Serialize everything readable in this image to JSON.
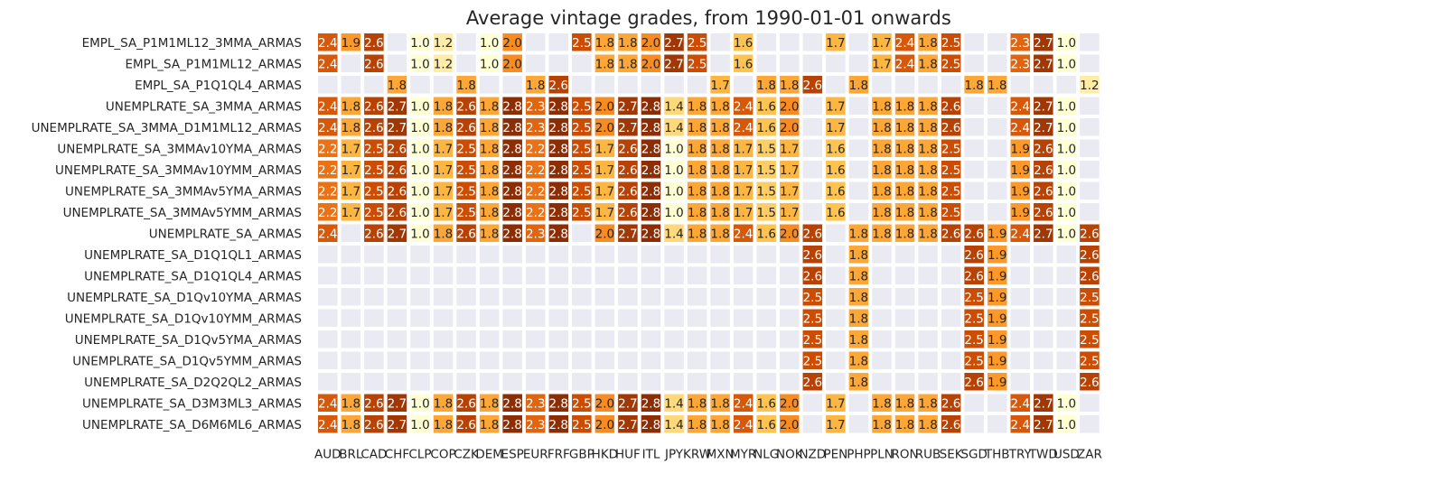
{
  "chart_data": {
    "type": "heatmap",
    "title": "Average vintage grades, from 1990-01-01 onwards",
    "xlabel": "",
    "ylabel": "",
    "x_categories": [
      "AUD",
      "BRL",
      "CAD",
      "CHF",
      "CLP",
      "COP",
      "CZK",
      "DEM",
      "ESP",
      "EUR",
      "FRF",
      "GBP",
      "HKD",
      "HUF",
      "ITL",
      "JPY",
      "KRW",
      "MXN",
      "MYR",
      "NLG",
      "NOK",
      "NZD",
      "PEN",
      "PHP",
      "PLN",
      "RON",
      "RUB",
      "SEK",
      "SGD",
      "THB",
      "TRY",
      "TWD",
      "USD",
      "ZAR"
    ],
    "y_categories": [
      "EMPL_SA_P1M1ML12_3MMA_ARMAS",
      "EMPL_SA_P1M1ML12_ARMAS",
      "EMPL_SA_P1Q1QL4_ARMAS",
      "UNEMPLRATE_SA_3MMA_ARMAS",
      "UNEMPLRATE_SA_3MMA_D1M1ML12_ARMAS",
      "UNEMPLRATE_SA_3MMAv10YMA_ARMAS",
      "UNEMPLRATE_SA_3MMAv10YMM_ARMAS",
      "UNEMPLRATE_SA_3MMAv5YMA_ARMAS",
      "UNEMPLRATE_SA_3MMAv5YMM_ARMAS",
      "UNEMPLRATE_SA_ARMAS",
      "UNEMPLRATE_SA_D1Q1QL1_ARMAS",
      "UNEMPLRATE_SA_D1Q1QL4_ARMAS",
      "UNEMPLRATE_SA_D1Qv10YMA_ARMAS",
      "UNEMPLRATE_SA_D1Qv10YMM_ARMAS",
      "UNEMPLRATE_SA_D1Qv5YMA_ARMAS",
      "UNEMPLRATE_SA_D1Qv5YMM_ARMAS",
      "UNEMPLRATE_SA_D2Q2QL2_ARMAS",
      "UNEMPLRATE_SA_D3M3ML3_ARMAS",
      "UNEMPLRATE_SA_D6M6ML6_ARMAS"
    ],
    "values": [
      [
        2.4,
        1.9,
        2.6,
        null,
        1.0,
        1.2,
        null,
        1.0,
        2.0,
        null,
        null,
        2.5,
        1.8,
        1.8,
        2.0,
        2.7,
        2.5,
        null,
        1.6,
        null,
        null,
        null,
        1.7,
        null,
        1.7,
        2.4,
        1.8,
        2.5,
        null,
        null,
        2.3,
        2.7,
        1.0,
        null
      ],
      [
        2.4,
        null,
        2.6,
        null,
        1.0,
        1.2,
        null,
        1.0,
        2.0,
        null,
        null,
        null,
        1.8,
        1.8,
        2.0,
        2.7,
        2.5,
        null,
        1.6,
        null,
        null,
        null,
        null,
        null,
        1.7,
        2.4,
        1.8,
        2.5,
        null,
        null,
        2.3,
        2.7,
        1.0,
        null
      ],
      [
        null,
        null,
        null,
        1.8,
        null,
        null,
        1.8,
        null,
        null,
        1.8,
        2.6,
        null,
        null,
        null,
        null,
        null,
        null,
        1.7,
        null,
        1.8,
        1.8,
        2.6,
        null,
        1.8,
        null,
        null,
        null,
        null,
        1.8,
        1.8,
        null,
        null,
        null,
        1.2
      ],
      [
        2.4,
        1.8,
        2.6,
        2.7,
        1.0,
        1.8,
        2.6,
        1.8,
        2.8,
        2.3,
        2.8,
        2.5,
        2.0,
        2.7,
        2.8,
        1.4,
        1.8,
        1.8,
        2.4,
        1.6,
        2.0,
        null,
        1.7,
        null,
        1.8,
        1.8,
        1.8,
        2.6,
        null,
        null,
        2.4,
        2.7,
        1.0,
        null
      ],
      [
        2.4,
        1.8,
        2.6,
        2.7,
        1.0,
        1.8,
        2.6,
        1.8,
        2.8,
        2.3,
        2.8,
        2.5,
        2.0,
        2.7,
        2.8,
        1.4,
        1.8,
        1.8,
        2.4,
        1.6,
        2.0,
        null,
        1.7,
        null,
        1.8,
        1.8,
        1.8,
        2.6,
        null,
        null,
        2.4,
        2.7,
        1.0,
        null
      ],
      [
        2.2,
        1.7,
        2.5,
        2.6,
        1.0,
        1.7,
        2.5,
        1.8,
        2.8,
        2.2,
        2.8,
        2.5,
        1.7,
        2.6,
        2.8,
        1.0,
        1.8,
        1.8,
        1.7,
        1.5,
        1.7,
        null,
        1.6,
        null,
        1.8,
        1.8,
        1.8,
        2.5,
        null,
        null,
        1.9,
        2.6,
        1.0,
        null
      ],
      [
        2.2,
        1.7,
        2.5,
        2.6,
        1.0,
        1.7,
        2.5,
        1.8,
        2.8,
        2.2,
        2.8,
        2.5,
        1.7,
        2.6,
        2.8,
        1.0,
        1.8,
        1.8,
        1.7,
        1.5,
        1.7,
        null,
        1.6,
        null,
        1.8,
        1.8,
        1.8,
        2.5,
        null,
        null,
        1.9,
        2.6,
        1.0,
        null
      ],
      [
        2.2,
        1.7,
        2.5,
        2.6,
        1.0,
        1.7,
        2.5,
        1.8,
        2.8,
        2.2,
        2.8,
        2.5,
        1.7,
        2.6,
        2.8,
        1.0,
        1.8,
        1.8,
        1.7,
        1.5,
        1.7,
        null,
        1.6,
        null,
        1.8,
        1.8,
        1.8,
        2.5,
        null,
        null,
        1.9,
        2.6,
        1.0,
        null
      ],
      [
        2.2,
        1.7,
        2.5,
        2.6,
        1.0,
        1.7,
        2.5,
        1.8,
        2.8,
        2.2,
        2.8,
        2.5,
        1.7,
        2.6,
        2.8,
        1.0,
        1.8,
        1.8,
        1.7,
        1.5,
        1.7,
        null,
        1.6,
        null,
        1.8,
        1.8,
        1.8,
        2.5,
        null,
        null,
        1.9,
        2.6,
        1.0,
        null
      ],
      [
        2.4,
        null,
        2.6,
        2.7,
        1.0,
        1.8,
        2.6,
        1.8,
        2.8,
        2.3,
        2.8,
        null,
        2.0,
        2.7,
        2.8,
        1.4,
        1.8,
        1.8,
        2.4,
        1.6,
        2.0,
        2.6,
        null,
        1.8,
        1.8,
        1.8,
        1.8,
        2.6,
        2.6,
        1.9,
        2.4,
        2.7,
        1.0,
        2.6
      ],
      [
        null,
        null,
        null,
        null,
        null,
        null,
        null,
        null,
        null,
        null,
        null,
        null,
        null,
        null,
        null,
        null,
        null,
        null,
        null,
        null,
        null,
        2.6,
        null,
        1.8,
        null,
        null,
        null,
        null,
        2.6,
        1.9,
        null,
        null,
        null,
        2.6
      ],
      [
        null,
        null,
        null,
        null,
        null,
        null,
        null,
        null,
        null,
        null,
        null,
        null,
        null,
        null,
        null,
        null,
        null,
        null,
        null,
        null,
        null,
        2.6,
        null,
        1.8,
        null,
        null,
        null,
        null,
        2.6,
        1.9,
        null,
        null,
        null,
        2.6
      ],
      [
        null,
        null,
        null,
        null,
        null,
        null,
        null,
        null,
        null,
        null,
        null,
        null,
        null,
        null,
        null,
        null,
        null,
        null,
        null,
        null,
        null,
        2.5,
        null,
        1.8,
        null,
        null,
        null,
        null,
        2.5,
        1.9,
        null,
        null,
        null,
        2.5
      ],
      [
        null,
        null,
        null,
        null,
        null,
        null,
        null,
        null,
        null,
        null,
        null,
        null,
        null,
        null,
        null,
        null,
        null,
        null,
        null,
        null,
        null,
        2.5,
        null,
        1.8,
        null,
        null,
        null,
        null,
        2.5,
        1.9,
        null,
        null,
        null,
        2.5
      ],
      [
        null,
        null,
        null,
        null,
        null,
        null,
        null,
        null,
        null,
        null,
        null,
        null,
        null,
        null,
        null,
        null,
        null,
        null,
        null,
        null,
        null,
        2.5,
        null,
        1.8,
        null,
        null,
        null,
        null,
        2.5,
        1.9,
        null,
        null,
        null,
        2.5
      ],
      [
        null,
        null,
        null,
        null,
        null,
        null,
        null,
        null,
        null,
        null,
        null,
        null,
        null,
        null,
        null,
        null,
        null,
        null,
        null,
        null,
        null,
        2.5,
        null,
        1.8,
        null,
        null,
        null,
        null,
        2.5,
        1.9,
        null,
        null,
        null,
        2.5
      ],
      [
        null,
        null,
        null,
        null,
        null,
        null,
        null,
        null,
        null,
        null,
        null,
        null,
        null,
        null,
        null,
        null,
        null,
        null,
        null,
        null,
        null,
        2.6,
        null,
        1.8,
        null,
        null,
        null,
        null,
        2.6,
        1.9,
        null,
        null,
        null,
        2.6
      ],
      [
        2.4,
        1.8,
        2.6,
        2.7,
        1.0,
        1.8,
        2.6,
        1.8,
        2.8,
        2.3,
        2.8,
        2.5,
        2.0,
        2.7,
        2.8,
        1.4,
        1.8,
        1.8,
        2.4,
        1.6,
        2.0,
        null,
        1.7,
        null,
        1.8,
        1.8,
        1.8,
        2.6,
        null,
        null,
        2.4,
        2.7,
        1.0,
        null
      ],
      [
        2.4,
        1.8,
        2.6,
        2.7,
        1.0,
        1.8,
        2.6,
        1.8,
        2.8,
        2.3,
        2.8,
        2.5,
        2.0,
        2.7,
        2.8,
        1.4,
        1.8,
        1.8,
        2.4,
        1.6,
        2.0,
        null,
        1.7,
        null,
        1.8,
        1.8,
        1.8,
        2.6,
        null,
        null,
        2.4,
        2.7,
        1.0,
        null
      ]
    ],
    "value_range": [
      1.0,
      2.8
    ],
    "colormap": [
      "#ffffd4",
      "#fee391",
      "#fec44f",
      "#fe9929",
      "#ec7014",
      "#cc4c02",
      "#8c2d04"
    ],
    "empty_cell_color": "#eaeaf2",
    "grid": true,
    "legend": "none"
  }
}
